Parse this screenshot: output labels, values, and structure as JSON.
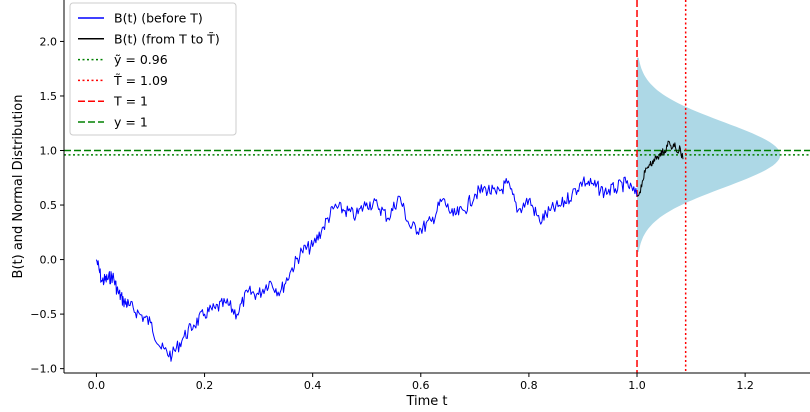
{
  "chart_data": {
    "type": "line",
    "xlabel": "Time t",
    "ylabel": "B(t) and Normal Distribution",
    "xlim": [
      -0.06,
      1.32
    ],
    "ylim": [
      -1.04,
      2.38
    ],
    "xticks": [
      "0.0",
      "0.2",
      "0.4",
      "0.6",
      "0.8",
      "1.0",
      "1.2"
    ],
    "yticks": [
      "−1.0",
      "−0.5",
      "0.0",
      "0.5",
      "1.0",
      "1.5",
      "2.0"
    ],
    "grid": false,
    "legend_position": "top-left",
    "legend": [
      {
        "label": "B(t) (before T)",
        "style": "solid",
        "color": "#0000ff"
      },
      {
        "label": "B(t) (from T to T̃)",
        "style": "solid",
        "color": "#000000"
      },
      {
        "label": "ỹ = 0.96",
        "style": "dotted",
        "color": "#008000"
      },
      {
        "label": "T̃ = 1.09",
        "style": "dotted",
        "color": "#ff0000"
      },
      {
        "label": "T = 1",
        "style": "dashed",
        "color": "#ff0000"
      },
      {
        "label": "y = 1",
        "style": "dashed",
        "color": "#008000"
      }
    ],
    "series": [
      {
        "name": "B(t) (before T)",
        "color": "#0000ff",
        "x": [
          0.0,
          0.01,
          0.02,
          0.03,
          0.04,
          0.05,
          0.06,
          0.08,
          0.1,
          0.12,
          0.14,
          0.16,
          0.18,
          0.2,
          0.22,
          0.24,
          0.26,
          0.28,
          0.3,
          0.32,
          0.34,
          0.36,
          0.38,
          0.4,
          0.42,
          0.44,
          0.46,
          0.48,
          0.5,
          0.52,
          0.54,
          0.56,
          0.58,
          0.6,
          0.62,
          0.64,
          0.66,
          0.68,
          0.7,
          0.72,
          0.74,
          0.76,
          0.78,
          0.8,
          0.82,
          0.84,
          0.86,
          0.88,
          0.9,
          0.92,
          0.94,
          0.96,
          0.98,
          1.0
        ],
        "y": [
          0.0,
          -0.2,
          -0.18,
          -0.15,
          -0.3,
          -0.38,
          -0.42,
          -0.5,
          -0.58,
          -0.82,
          -0.88,
          -0.72,
          -0.6,
          -0.5,
          -0.45,
          -0.4,
          -0.5,
          -0.3,
          -0.32,
          -0.2,
          -0.3,
          -0.1,
          0.08,
          0.12,
          0.3,
          0.48,
          0.45,
          0.4,
          0.52,
          0.5,
          0.38,
          0.58,
          0.3,
          0.28,
          0.35,
          0.55,
          0.4,
          0.45,
          0.6,
          0.65,
          0.6,
          0.7,
          0.45,
          0.55,
          0.35,
          0.45,
          0.5,
          0.6,
          0.72,
          0.68,
          0.62,
          0.65,
          0.7,
          0.58
        ]
      },
      {
        "name": "B(t) (from T to T̃)",
        "color": "#000000",
        "x": [
          1.0,
          1.005,
          1.01,
          1.015,
          1.02,
          1.025,
          1.03,
          1.035,
          1.04,
          1.045,
          1.05,
          1.055,
          1.06,
          1.065,
          1.07,
          1.075,
          1.08,
          1.085
        ],
        "y": [
          0.58,
          0.62,
          0.72,
          0.8,
          0.85,
          0.9,
          0.88,
          0.95,
          0.92,
          1.0,
          0.96,
          1.05,
          1.08,
          1.02,
          1.07,
          0.98,
          1.02,
          0.92
        ]
      }
    ],
    "reference_lines": [
      {
        "orientation": "horizontal",
        "value": 0.96,
        "style": "dotted",
        "color": "#008000"
      },
      {
        "orientation": "horizontal",
        "value": 1.0,
        "style": "dashed",
        "color": "#008000"
      },
      {
        "orientation": "vertical",
        "value": 1.0,
        "style": "dashed",
        "color": "#ff0000"
      },
      {
        "orientation": "vertical",
        "value": 1.09,
        "style": "dotted",
        "color": "#ff0000"
      }
    ],
    "normal_distribution": {
      "mean": 0.96,
      "sd": 0.3,
      "base_x": 1.0,
      "peak_width": 0.265,
      "y_range": [
        0.07,
        1.85
      ],
      "color": "#add8e6"
    }
  }
}
